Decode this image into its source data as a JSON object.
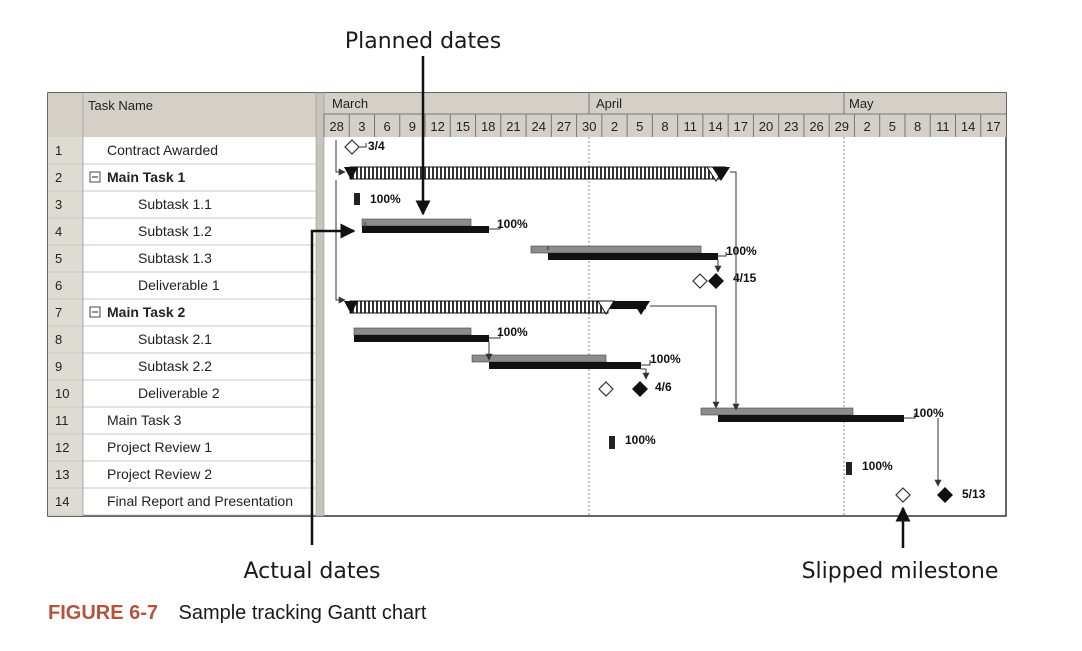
{
  "callouts": {
    "planned": "Planned dates",
    "actual": "Actual dates",
    "slipped": "Slipped milestone"
  },
  "caption": {
    "number": "FIGURE 6-7",
    "text": "Sample tracking Gantt chart"
  },
  "table": {
    "header": "Task Name",
    "months": [
      "March",
      "April",
      "May"
    ],
    "day_ticks": [
      "28",
      "3",
      "6",
      "9",
      "12",
      "15",
      "18",
      "21",
      "24",
      "27",
      "30",
      "2",
      "5",
      "8",
      "11",
      "14",
      "17",
      "20",
      "23",
      "26",
      "29",
      "2",
      "5",
      "8",
      "11",
      "14",
      "17"
    ],
    "rows": [
      {
        "num": "1",
        "name": "Contract Awarded",
        "level": 1,
        "bold": false,
        "collapse": false
      },
      {
        "num": "2",
        "name": "Main Task 1",
        "level": 0,
        "bold": true,
        "collapse": true
      },
      {
        "num": "3",
        "name": "Subtask 1.1",
        "level": 2,
        "bold": false,
        "collapse": false
      },
      {
        "num": "4",
        "name": "Subtask 1.2",
        "level": 2,
        "bold": false,
        "collapse": false
      },
      {
        "num": "5",
        "name": "Subtask 1.3",
        "level": 2,
        "bold": false,
        "collapse": false
      },
      {
        "num": "6",
        "name": "Deliverable 1",
        "level": 2,
        "bold": false,
        "collapse": false
      },
      {
        "num": "7",
        "name": "Main Task 2",
        "level": 0,
        "bold": true,
        "collapse": true
      },
      {
        "num": "8",
        "name": "Subtask 2.1",
        "level": 2,
        "bold": false,
        "collapse": false
      },
      {
        "num": "9",
        "name": "Subtask 2.2",
        "level": 2,
        "bold": false,
        "collapse": false
      },
      {
        "num": "10",
        "name": "Deliverable 2",
        "level": 2,
        "bold": false,
        "collapse": false
      },
      {
        "num": "11",
        "name": "Main Task 3",
        "level": 1,
        "bold": false,
        "collapse": false
      },
      {
        "num": "12",
        "name": "Project Review 1",
        "level": 1,
        "bold": false,
        "collapse": false
      },
      {
        "num": "13",
        "name": "Project Review 2",
        "level": 1,
        "bold": false,
        "collapse": false
      },
      {
        "num": "14",
        "name": "Final Report and Presentation",
        "level": 1,
        "bold": false,
        "collapse": false
      }
    ]
  },
  "bars": {
    "labels": {
      "r1": "3/4",
      "r3": "100%",
      "r4": "100%",
      "r5": "100%",
      "r6": "4/15",
      "r8": "100%",
      "r9": "100%",
      "r10": "4/6",
      "r11": "100%",
      "r12": "100%",
      "r13": "100%",
      "r14": "5/13"
    }
  },
  "colors": {
    "caption_accent": "#b5533c",
    "planned_bar": "#8c8c8c",
    "actual_bar": "#111111",
    "grid": "#c8c8c8",
    "header_bg": "#d4d0c8"
  }
}
